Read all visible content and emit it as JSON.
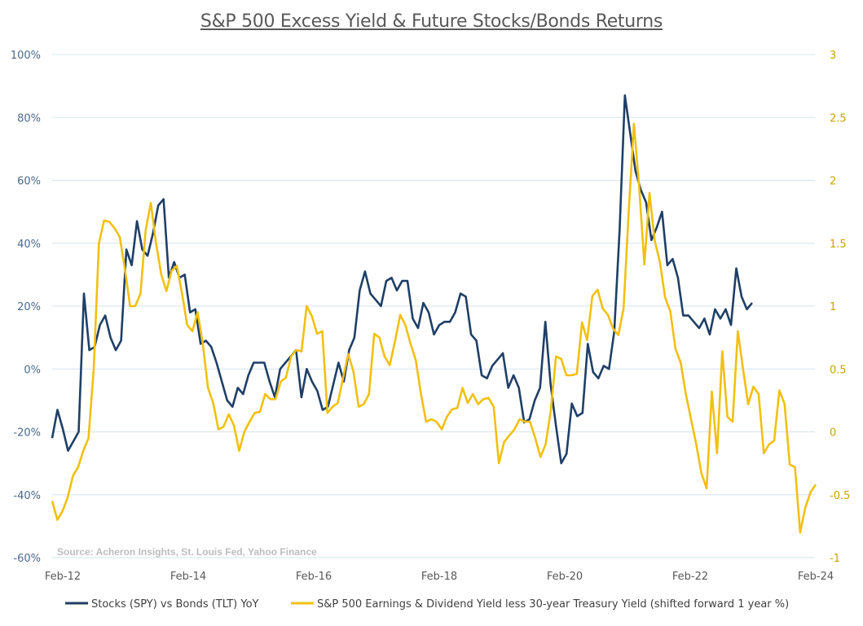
{
  "chart_data": {
    "type": "line",
    "title": "S&P 500 Excess Yield & Future Stocks/Bonds Returns",
    "source": "Source: Acheron Insights, St. Louis Fed, Yahoo Finance",
    "x_ticks": [
      "Feb-12",
      "Feb-14",
      "Feb-16",
      "Feb-18",
      "Feb-20",
      "Feb-22",
      "Feb-24"
    ],
    "y_left": {
      "ticks": [
        "100%",
        "80%",
        "60%",
        "40%",
        "20%",
        "0%",
        "-20%",
        "-40%",
        "-60%"
      ],
      "range": [
        -60,
        100
      ],
      "unit": "%"
    },
    "y_right": {
      "ticks": [
        "3",
        "2.5",
        "2",
        "1.5",
        "1",
        "0.5",
        "0",
        "-0.5",
        "-1"
      ],
      "range": [
        -1,
        3
      ]
    },
    "grid": "horizontal",
    "legend_position": "bottom",
    "x_start": "Feb-12",
    "x_end": "Feb-24",
    "series": [
      {
        "name": "Stocks (SPY) vs Bonds (TLT) YoY",
        "axis": "left",
        "color": "#1f3f66",
        "values": [
          -22,
          -13,
          -19,
          -26,
          -23,
          -20,
          24,
          6,
          7,
          14,
          17,
          10,
          6,
          9,
          38,
          33,
          47,
          38,
          36,
          43,
          52,
          54,
          29,
          34,
          29,
          30,
          18,
          19,
          8,
          9,
          7,
          2,
          -4,
          -10,
          -12,
          -6,
          -8,
          -2,
          2,
          2,
          2,
          -4,
          -9,
          0,
          2,
          4,
          6,
          -9,
          0,
          -4,
          -7,
          -13,
          -12,
          -5,
          2,
          -4,
          6,
          10,
          25,
          31,
          24,
          22,
          20,
          28,
          29,
          25,
          28,
          28,
          16,
          13,
          21,
          18,
          11,
          14,
          15,
          15,
          18,
          24,
          23,
          11,
          9,
          -2,
          -3,
          1,
          3,
          5,
          -6,
          -2,
          -6,
          -17,
          -16,
          -10,
          -6,
          15,
          -5,
          -18,
          -30,
          -27,
          -11,
          -15,
          -14,
          8,
          -1,
          -3,
          1,
          0,
          12,
          44,
          87,
          75,
          63,
          57,
          53,
          41,
          45,
          50,
          33,
          35,
          29,
          17,
          17,
          15,
          13,
          16,
          11,
          19,
          16,
          19,
          14,
          32,
          23,
          19,
          21
        ]
      },
      {
        "name": "S&P 500 Earnings & Dividend Yield less 30-year Treasury Yield (shifted forward 1 year %)",
        "axis": "right",
        "color": "#f2c010",
        "values": [
          -0.55,
          -0.7,
          -0.63,
          -0.52,
          -0.35,
          -0.28,
          -0.15,
          -0.05,
          0.5,
          1.5,
          1.68,
          1.67,
          1.62,
          1.55,
          1.3,
          1.0,
          1.0,
          1.1,
          1.6,
          1.82,
          1.5,
          1.25,
          1.12,
          1.28,
          1.32,
          1.1,
          0.85,
          0.8,
          0.95,
          0.7,
          0.35,
          0.23,
          0.02,
          0.04,
          0.14,
          0.05,
          -0.15,
          0.0,
          0.08,
          0.15,
          0.16,
          0.3,
          0.26,
          0.26,
          0.4,
          0.43,
          0.6,
          0.65,
          0.64,
          1.0,
          0.92,
          0.78,
          0.8,
          0.15,
          0.2,
          0.23,
          0.43,
          0.62,
          0.48,
          0.2,
          0.22,
          0.3,
          0.78,
          0.75,
          0.6,
          0.53,
          0.72,
          0.93,
          0.85,
          0.7,
          0.57,
          0.3,
          0.08,
          0.1,
          0.08,
          0.02,
          0.12,
          0.18,
          0.19,
          0.35,
          0.23,
          0.3,
          0.22,
          0.26,
          0.27,
          0.2,
          -0.25,
          -0.08,
          -0.03,
          0.02,
          0.1,
          0.08,
          0.08,
          -0.05,
          -0.2,
          -0.1,
          0.17,
          0.6,
          0.58,
          0.45,
          0.45,
          0.46,
          0.87,
          0.73,
          1.08,
          1.13,
          0.98,
          0.93,
          0.82,
          0.77,
          0.98,
          1.75,
          2.45,
          1.95,
          1.33,
          1.9,
          1.52,
          1.35,
          1.07,
          0.96,
          0.66,
          0.55,
          0.3,
          0.1,
          -0.1,
          -0.33,
          -0.45,
          0.32,
          -0.17,
          0.64,
          0.12,
          0.08,
          0.8,
          0.5,
          0.22,
          0.36,
          0.3,
          -0.17,
          -0.1,
          -0.07,
          0.33,
          0.22,
          -0.26,
          -0.28,
          -0.8,
          -0.6,
          -0.48,
          -0.42
        ]
      }
    ]
  }
}
